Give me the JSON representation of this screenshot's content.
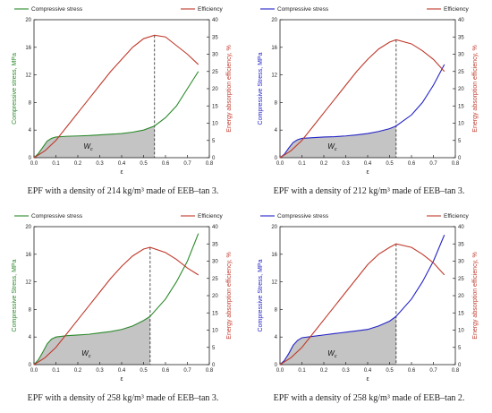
{
  "legend": {
    "compressive": "Compressive stress",
    "efficiency": "Efficiency"
  },
  "work_label": "W",
  "work_label_sub": "c",
  "colors": {
    "green": "#2a8a2a",
    "blue": "#2323c8",
    "red": "#c0392b",
    "fill": "#c4c4c4"
  },
  "chart_data": [
    {
      "type": "line",
      "caption": "EPF with a density of 214 kg/m³ made of EEB–tan 3.",
      "stress_color": "green",
      "xlabel": "ε",
      "ylabel_left": "Compressive stress, MPa",
      "ylabel_right": "Energy absorption efficiency, %",
      "xlim": [
        0,
        0.8
      ],
      "ylim_left": [
        0,
        20
      ],
      "ylim_right": [
        0,
        40
      ],
      "xticks": [
        "0.0",
        "0.1",
        "0.2",
        "0.3",
        "0.4",
        "0.5",
        "0.6",
        "0.7",
        "0.8"
      ],
      "yticks_left": [
        "0",
        "4",
        "8",
        "12",
        "16",
        "20"
      ],
      "yticks_right": [
        "0",
        "5",
        "10",
        "15",
        "20",
        "25",
        "30",
        "35",
        "40"
      ],
      "max_efficiency_strain": 0.55,
      "series": [
        {
          "name": "Compressive stress",
          "axis": "left",
          "x": [
            0,
            0.02,
            0.04,
            0.06,
            0.08,
            0.1,
            0.15,
            0.2,
            0.25,
            0.3,
            0.35,
            0.4,
            0.45,
            0.5,
            0.55,
            0.6,
            0.65,
            0.7,
            0.75
          ],
          "y": [
            0,
            0.6,
            1.5,
            2.4,
            2.8,
            3.0,
            3.1,
            3.15,
            3.2,
            3.3,
            3.4,
            3.5,
            3.7,
            4.0,
            4.6,
            5.8,
            7.5,
            10.0,
            12.5
          ]
        },
        {
          "name": "Efficiency",
          "axis": "right",
          "x": [
            0,
            0.05,
            0.1,
            0.15,
            0.2,
            0.25,
            0.3,
            0.35,
            0.4,
            0.45,
            0.5,
            0.55,
            0.6,
            0.65,
            0.7,
            0.75
          ],
          "y": [
            0,
            2,
            5,
            9,
            13,
            17,
            21,
            25,
            28.5,
            32,
            34.5,
            35.5,
            35,
            32.5,
            30,
            27
          ]
        }
      ]
    },
    {
      "type": "line",
      "caption": "EPF with a density of 212 kg/m³ made of EEB–tan 3.",
      "stress_color": "blue",
      "xlabel": "ε",
      "ylabel_left": "Compressive Stress, MPa",
      "ylabel_right": "Energy absorption efficiency, %",
      "xlim": [
        0,
        0.8
      ],
      "ylim_left": [
        0,
        20
      ],
      "ylim_right": [
        0,
        40
      ],
      "xticks": [
        "0.0",
        "0.1",
        "0.2",
        "0.3",
        "0.4",
        "0.5",
        "0.6",
        "0.7",
        "0.8"
      ],
      "yticks_left": [
        "0",
        "4",
        "8",
        "12",
        "16",
        "20"
      ],
      "yticks_right": [
        "0",
        "5",
        "10",
        "15",
        "20",
        "25",
        "30",
        "35",
        "40"
      ],
      "max_efficiency_strain": 0.53,
      "series": [
        {
          "name": "Compressive stress",
          "axis": "left",
          "x": [
            0,
            0.02,
            0.04,
            0.06,
            0.08,
            0.1,
            0.15,
            0.2,
            0.25,
            0.3,
            0.35,
            0.4,
            0.45,
            0.5,
            0.53,
            0.6,
            0.65,
            0.7,
            0.75
          ],
          "y": [
            0,
            0.5,
            1.4,
            2.2,
            2.6,
            2.8,
            2.9,
            3.0,
            3.05,
            3.15,
            3.3,
            3.5,
            3.8,
            4.2,
            4.6,
            6.2,
            8.0,
            10.5,
            13.5
          ]
        },
        {
          "name": "Efficiency",
          "axis": "right",
          "x": [
            0,
            0.05,
            0.1,
            0.15,
            0.2,
            0.25,
            0.3,
            0.35,
            0.4,
            0.45,
            0.5,
            0.53,
            0.6,
            0.65,
            0.7,
            0.75
          ],
          "y": [
            0,
            2,
            5,
            9,
            13,
            17,
            21,
            25,
            28.5,
            31.5,
            33.5,
            34.2,
            33,
            31,
            28.5,
            25
          ]
        }
      ]
    },
    {
      "type": "line",
      "caption": "EPF with a density of 258 kg/m³ made of EEB–tan 3.",
      "stress_color": "green",
      "xlabel": "ε",
      "ylabel_left": "Compressive Stress, MPa",
      "ylabel_right": "Energy absorption efficiency, %",
      "xlim": [
        0,
        0.8
      ],
      "ylim_left": [
        0,
        20
      ],
      "ylim_right": [
        0,
        40
      ],
      "xticks": [
        "0.0",
        "0.1",
        "0.2",
        "0.3",
        "0.4",
        "0.5",
        "0.6",
        "0.7",
        "0.8"
      ],
      "yticks_left": [
        "0",
        "4",
        "8",
        "12",
        "16",
        "20"
      ],
      "yticks_right": [
        "0",
        "5",
        "10",
        "15",
        "20",
        "25",
        "30",
        "35",
        "40"
      ],
      "max_efficiency_strain": 0.53,
      "series": [
        {
          "name": "Compressive stress",
          "axis": "left",
          "x": [
            0,
            0.02,
            0.04,
            0.06,
            0.08,
            0.1,
            0.15,
            0.2,
            0.25,
            0.3,
            0.35,
            0.4,
            0.45,
            0.5,
            0.53,
            0.6,
            0.65,
            0.7,
            0.75
          ],
          "y": [
            0,
            0.7,
            1.8,
            3.0,
            3.7,
            4.0,
            4.2,
            4.3,
            4.4,
            4.6,
            4.8,
            5.1,
            5.6,
            6.4,
            7.0,
            9.5,
            12.0,
            15.0,
            19.0
          ]
        },
        {
          "name": "Efficiency",
          "axis": "right",
          "x": [
            0,
            0.05,
            0.1,
            0.15,
            0.2,
            0.25,
            0.3,
            0.35,
            0.4,
            0.45,
            0.5,
            0.53,
            0.6,
            0.65,
            0.7,
            0.75
          ],
          "y": [
            0,
            2,
            5,
            9,
            13,
            17,
            21,
            25,
            28.5,
            31.5,
            33.5,
            34,
            32.5,
            30.5,
            28,
            26
          ]
        }
      ]
    },
    {
      "type": "line",
      "caption": "EPF with a density of 258 kg/m³ made of EEB–tan 2.",
      "stress_color": "blue",
      "xlabel": "ε",
      "ylabel_left": "Compressive Stress, MPa",
      "ylabel_right": "Energy absorption efficiency, %",
      "xlim": [
        0,
        0.8
      ],
      "ylim_left": [
        0,
        20
      ],
      "ylim_right": [
        0,
        40
      ],
      "xticks": [
        "0.0",
        "0.1",
        "0.2",
        "0.3",
        "0.4",
        "0.5",
        "0.6",
        "0.7",
        "0.8"
      ],
      "yticks_left": [
        "0",
        "4",
        "8",
        "12",
        "16",
        "20"
      ],
      "yticks_right": [
        "0",
        "5",
        "10",
        "15",
        "20",
        "25",
        "30",
        "35",
        "40"
      ],
      "max_efficiency_strain": 0.53,
      "series": [
        {
          "name": "Compressive stress",
          "axis": "left",
          "x": [
            0,
            0.02,
            0.04,
            0.06,
            0.08,
            0.1,
            0.15,
            0.2,
            0.25,
            0.3,
            0.35,
            0.4,
            0.45,
            0.5,
            0.53,
            0.6,
            0.65,
            0.7,
            0.75
          ],
          "y": [
            0,
            0.6,
            1.6,
            2.8,
            3.5,
            3.9,
            4.1,
            4.3,
            4.5,
            4.7,
            4.9,
            5.1,
            5.6,
            6.3,
            7.0,
            9.5,
            12.0,
            15.0,
            18.8
          ]
        },
        {
          "name": "Efficiency",
          "axis": "right",
          "x": [
            0,
            0.05,
            0.1,
            0.15,
            0.2,
            0.25,
            0.3,
            0.35,
            0.4,
            0.45,
            0.5,
            0.53,
            0.6,
            0.65,
            0.7,
            0.75
          ],
          "y": [
            0,
            2,
            5,
            9,
            13,
            17,
            21,
            25,
            29,
            32,
            34,
            35,
            34,
            32,
            29.5,
            26
          ]
        }
      ]
    }
  ]
}
